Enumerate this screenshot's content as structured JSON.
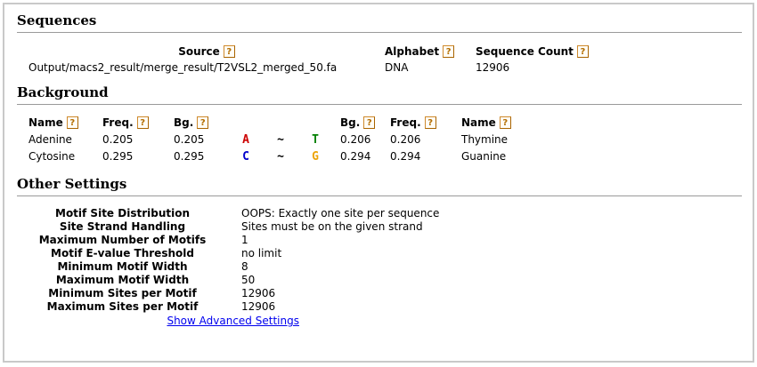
{
  "help": {
    "glyph": "?"
  },
  "sequences": {
    "title": "Sequences",
    "columns": {
      "source": "Source",
      "alphabet": "Alphabet",
      "count": "Sequence Count"
    },
    "row": {
      "source": "Output/macs2_result/merge_result/T2VSL2_merged_50.fa",
      "alphabet": "DNA",
      "count": "12906"
    }
  },
  "background": {
    "title": "Background",
    "headers": {
      "name": "Name",
      "freq": "Freq.",
      "bg": "Bg."
    },
    "rows": [
      {
        "name_left": "Adenine",
        "freq_left": "0.205",
        "bg_left": "0.205",
        "letter_left": "A",
        "letter_left_color": "#cc0000",
        "tilde": "~",
        "letter_right": "T",
        "letter_right_color": "#008000",
        "bg_right": "0.206",
        "freq_right": "0.206",
        "name_right": "Thymine"
      },
      {
        "name_left": "Cytosine",
        "freq_left": "0.295",
        "bg_left": "0.295",
        "letter_left": "C",
        "letter_left_color": "#0000cc",
        "tilde": "~",
        "letter_right": "G",
        "letter_right_color": "#eda407",
        "bg_right": "0.294",
        "freq_right": "0.294",
        "name_right": "Guanine"
      }
    ]
  },
  "other_settings": {
    "title": "Other Settings",
    "rows": [
      {
        "label": "Motif Site Distribution",
        "value": "OOPS: Exactly one site per sequence"
      },
      {
        "label": "Site Strand Handling",
        "value": "Sites must be on the given strand"
      },
      {
        "label": "Maximum Number of Motifs",
        "value": "1"
      },
      {
        "label": "Motif E-value Threshold",
        "value": "no limit"
      },
      {
        "label": "Minimum Motif Width",
        "value": "8"
      },
      {
        "label": "Maximum Motif Width",
        "value": "50"
      },
      {
        "label": "Minimum Sites per Motif",
        "value": "12906"
      },
      {
        "label": "Maximum Sites per Motif",
        "value": "12906"
      }
    ],
    "advanced_link": "Show Advanced Settings"
  }
}
